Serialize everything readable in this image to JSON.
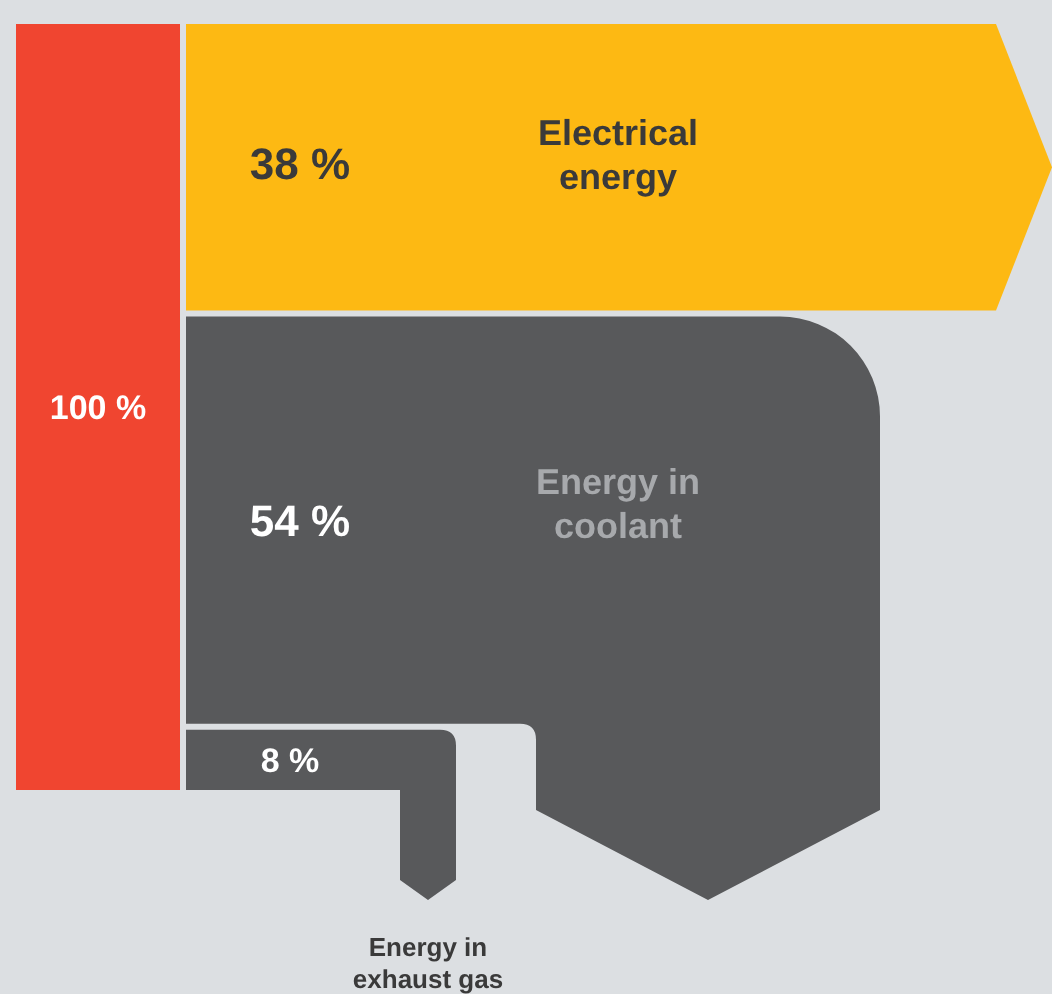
{
  "chart_data": {
    "type": "other",
    "categories": [
      "Electrical energy",
      "Energy in coolant",
      "Energy in exhaust gas"
    ],
    "values": [
      38,
      54,
      8
    ],
    "value_labels": [
      "38 %",
      "54 %",
      "8 %"
    ],
    "colors": [
      "#fdb913",
      "#58595b",
      "#58595b"
    ],
    "annotations": [
      "100 %"
    ]
  }
}
